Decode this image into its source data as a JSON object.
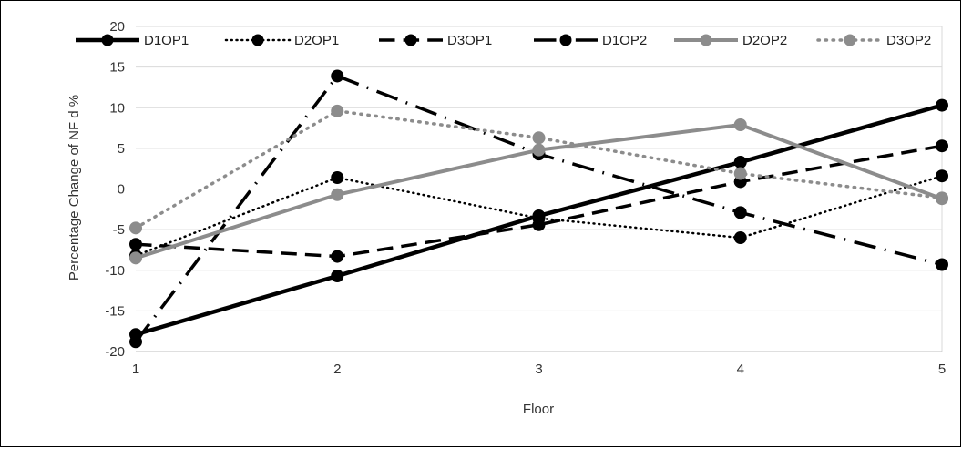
{
  "chart_data": {
    "type": "line",
    "title": "",
    "xlabel": "Floor",
    "ylabel": "Percentage Change of NF d %",
    "x": [
      1,
      2,
      3,
      4,
      5
    ],
    "x_ticks": [
      "1",
      "2",
      "3",
      "4",
      "5"
    ],
    "y_ticks": [
      "20",
      "15",
      "10",
      "5",
      "0",
      "-5",
      "-10",
      "-15",
      "-20"
    ],
    "ylim": [
      -20,
      20
    ],
    "grid": "horizontal",
    "legend_position": "top",
    "series": [
      {
        "name": "D1OP1",
        "values": [
          -17.9,
          -10.7,
          -3.3,
          3.3,
          10.3
        ],
        "color": "#000000",
        "style": "solid",
        "width": 4.5
      },
      {
        "name": "D2OP1",
        "values": [
          -8.2,
          1.4,
          -3.6,
          -6.0,
          1.6
        ],
        "color": "#000000",
        "style": "dotted",
        "width": 2.5
      },
      {
        "name": "D3OP1",
        "values": [
          -6.8,
          -8.3,
          -4.4,
          0.9,
          5.3
        ],
        "color": "#000000",
        "style": "dashed",
        "width": 3.5
      },
      {
        "name": "D1OP2",
        "values": [
          -18.8,
          13.9,
          4.3,
          -2.9,
          -9.3
        ],
        "color": "#000000",
        "style": "dashdot",
        "width": 3.5
      },
      {
        "name": "D2OP2",
        "values": [
          -8.5,
          -0.7,
          4.8,
          7.9,
          -1.2
        ],
        "color": "#8c8c8c",
        "style": "solid",
        "width": 4
      },
      {
        "name": "D3OP2",
        "values": [
          -4.8,
          9.6,
          6.3,
          1.9,
          -1.1
        ],
        "color": "#8c8c8c",
        "style": "dotted",
        "width": 3.5
      }
    ]
  }
}
